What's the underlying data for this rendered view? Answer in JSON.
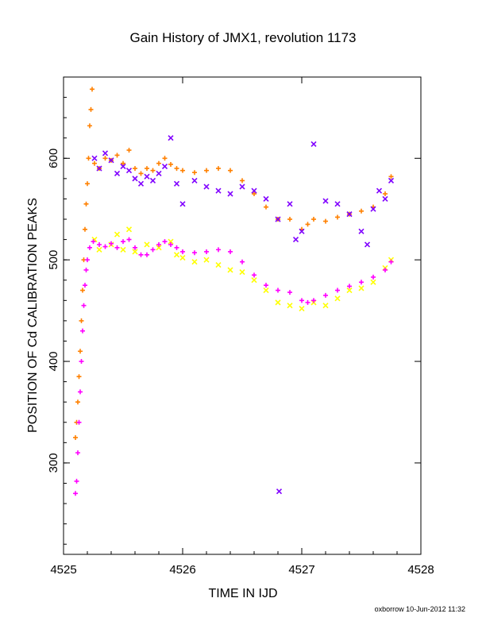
{
  "chart_data": {
    "type": "scatter",
    "title": "Gain History of JMX1, revolution 1173",
    "xlabel": "TIME IN IJD",
    "ylabel": "POSITION OF Cd CALIBRATION PEAKS",
    "xlim": [
      4525,
      4528
    ],
    "ylim": [
      210,
      680
    ],
    "x_ticks": [
      4525,
      4526,
      4527,
      4528
    ],
    "y_ticks": [
      300,
      400,
      500,
      600
    ],
    "grid": false,
    "series": [
      {
        "marker": "+",
        "color": "#ff8000",
        "points": [
          [
            4525.1,
            325
          ],
          [
            4525.11,
            340
          ],
          [
            4525.12,
            360
          ],
          [
            4525.13,
            385
          ],
          [
            4525.14,
            410
          ],
          [
            4525.15,
            440
          ],
          [
            4525.16,
            470
          ],
          [
            4525.17,
            500
          ],
          [
            4525.18,
            530
          ],
          [
            4525.19,
            555
          ],
          [
            4525.2,
            575
          ],
          [
            4525.21,
            600
          ],
          [
            4525.22,
            632
          ],
          [
            4525.23,
            648
          ],
          [
            4525.24,
            668
          ],
          [
            4525.26,
            595
          ],
          [
            4525.3,
            590
          ],
          [
            4525.35,
            600
          ],
          [
            4525.4,
            598
          ],
          [
            4525.45,
            603
          ],
          [
            4525.5,
            595
          ],
          [
            4525.55,
            608
          ],
          [
            4525.6,
            590
          ],
          [
            4525.65,
            585
          ],
          [
            4525.7,
            590
          ],
          [
            4525.75,
            588
          ],
          [
            4525.8,
            595
          ],
          [
            4525.85,
            600
          ],
          [
            4525.9,
            594
          ],
          [
            4525.95,
            590
          ],
          [
            4526.0,
            588
          ],
          [
            4526.1,
            586
          ],
          [
            4526.2,
            588
          ],
          [
            4526.3,
            590
          ],
          [
            4526.4,
            588
          ],
          [
            4526.5,
            578
          ],
          [
            4526.6,
            565
          ],
          [
            4526.7,
            552
          ],
          [
            4526.8,
            540
          ],
          [
            4526.9,
            540
          ],
          [
            4527.0,
            530
          ],
          [
            4527.05,
            535
          ],
          [
            4527.1,
            540
          ],
          [
            4527.2,
            538
          ],
          [
            4527.3,
            542
          ],
          [
            4527.4,
            545
          ],
          [
            4527.5,
            548
          ],
          [
            4527.6,
            552
          ],
          [
            4527.7,
            565
          ],
          [
            4527.75,
            582
          ]
        ]
      },
      {
        "marker": "x",
        "color": "#8000ff",
        "points": [
          [
            4525.26,
            600
          ],
          [
            4525.3,
            590
          ],
          [
            4525.35,
            605
          ],
          [
            4525.4,
            598
          ],
          [
            4525.45,
            585
          ],
          [
            4525.5,
            592
          ],
          [
            4525.55,
            588
          ],
          [
            4525.6,
            580
          ],
          [
            4525.65,
            575
          ],
          [
            4525.7,
            582
          ],
          [
            4525.75,
            578
          ],
          [
            4525.8,
            585
          ],
          [
            4525.85,
            592
          ],
          [
            4525.9,
            620
          ],
          [
            4525.95,
            575
          ],
          [
            4526.0,
            555
          ],
          [
            4526.1,
            578
          ],
          [
            4526.2,
            572
          ],
          [
            4526.3,
            568
          ],
          [
            4526.4,
            565
          ],
          [
            4526.5,
            572
          ],
          [
            4526.6,
            568
          ],
          [
            4526.7,
            560
          ],
          [
            4526.8,
            540
          ],
          [
            4526.81,
            272
          ],
          [
            4526.9,
            555
          ],
          [
            4526.95,
            520
          ],
          [
            4527.0,
            528
          ],
          [
            4527.1,
            614
          ],
          [
            4527.2,
            558
          ],
          [
            4527.3,
            555
          ],
          [
            4527.4,
            545
          ],
          [
            4527.5,
            528
          ],
          [
            4527.55,
            515
          ],
          [
            4527.6,
            550
          ],
          [
            4527.65,
            568
          ],
          [
            4527.7,
            560
          ],
          [
            4527.75,
            578
          ]
        ]
      },
      {
        "marker": "x",
        "color": "#ffff00",
        "points": [
          [
            4525.26,
            520
          ],
          [
            4525.3,
            510
          ],
          [
            4525.4,
            515
          ],
          [
            4525.45,
            525
          ],
          [
            4525.5,
            510
          ],
          [
            4525.55,
            530
          ],
          [
            4525.6,
            508
          ],
          [
            4525.7,
            515
          ],
          [
            4525.8,
            512
          ],
          [
            4525.9,
            518
          ],
          [
            4525.95,
            505
          ],
          [
            4526.0,
            502
          ],
          [
            4526.1,
            498
          ],
          [
            4526.2,
            500
          ],
          [
            4526.3,
            495
          ],
          [
            4526.4,
            490
          ],
          [
            4526.5,
            488
          ],
          [
            4526.6,
            480
          ],
          [
            4526.7,
            470
          ],
          [
            4526.8,
            458
          ],
          [
            4526.9,
            455
          ],
          [
            4527.0,
            452
          ],
          [
            4527.1,
            458
          ],
          [
            4527.2,
            455
          ],
          [
            4527.3,
            462
          ],
          [
            4527.4,
            470
          ],
          [
            4527.5,
            472
          ],
          [
            4527.6,
            478
          ],
          [
            4527.7,
            492
          ],
          [
            4527.75,
            500
          ]
        ]
      },
      {
        "marker": "+",
        "color": "#ff00ff",
        "points": [
          [
            4525.1,
            270
          ],
          [
            4525.11,
            282
          ],
          [
            4525.12,
            310
          ],
          [
            4525.13,
            340
          ],
          [
            4525.14,
            370
          ],
          [
            4525.15,
            400
          ],
          [
            4525.16,
            430
          ],
          [
            4525.17,
            455
          ],
          [
            4525.18,
            475
          ],
          [
            4525.19,
            490
          ],
          [
            4525.2,
            500
          ],
          [
            4525.22,
            512
          ],
          [
            4525.25,
            518
          ],
          [
            4525.3,
            515
          ],
          [
            4525.35,
            513
          ],
          [
            4525.4,
            516
          ],
          [
            4525.45,
            512
          ],
          [
            4525.5,
            518
          ],
          [
            4525.55,
            520
          ],
          [
            4525.6,
            512
          ],
          [
            4525.65,
            505
          ],
          [
            4525.7,
            505
          ],
          [
            4525.75,
            510
          ],
          [
            4525.8,
            515
          ],
          [
            4525.85,
            518
          ],
          [
            4525.9,
            515
          ],
          [
            4525.95,
            512
          ],
          [
            4526.0,
            508
          ],
          [
            4526.1,
            507
          ],
          [
            4526.2,
            508
          ],
          [
            4526.3,
            510
          ],
          [
            4526.4,
            508
          ],
          [
            4526.5,
            498
          ],
          [
            4526.6,
            485
          ],
          [
            4526.7,
            475
          ],
          [
            4526.8,
            470
          ],
          [
            4526.9,
            468
          ],
          [
            4527.0,
            460
          ],
          [
            4527.05,
            458
          ],
          [
            4527.1,
            460
          ],
          [
            4527.2,
            465
          ],
          [
            4527.3,
            470
          ],
          [
            4527.4,
            474
          ],
          [
            4527.5,
            478
          ],
          [
            4527.6,
            483
          ],
          [
            4527.7,
            490
          ],
          [
            4527.75,
            498
          ]
        ]
      }
    ]
  },
  "footer": "oxborrow 10-Jun-2012 11:32"
}
